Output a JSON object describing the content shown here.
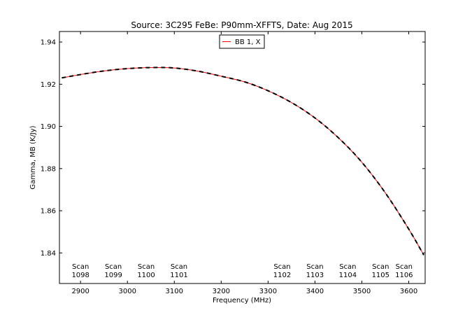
{
  "chart_data": {
    "type": "line",
    "title": "Source: 3C295 FeBe: P90mm-XFFTS, Date: Aug 2015",
    "xlabel": "Frequency (MHz)",
    "ylabel": "Gamma, MB (K/Jy)",
    "xlim": [
      2855,
      3635
    ],
    "ylim": [
      1.8255,
      1.945
    ],
    "xticks": [
      2900,
      3000,
      3100,
      3200,
      3300,
      3400,
      3500,
      3600
    ],
    "yticks": [
      1.84,
      1.86,
      1.88,
      1.9,
      1.92,
      1.94
    ],
    "xtick_labels": [
      "2900",
      "3000",
      "3100",
      "3200",
      "3300",
      "3400",
      "3500",
      "3600"
    ],
    "ytick_labels": [
      "1.84",
      "1.86",
      "1.88",
      "1.90",
      "1.92",
      "1.94"
    ],
    "legend": {
      "location": "top-center",
      "entries": [
        {
          "label": "BB 1, X",
          "color": "#ff0000",
          "style": "solid"
        }
      ]
    },
    "series": [
      {
        "name": "BB 1, X",
        "color": "#ff0000",
        "style": "solid",
        "x": [
          2860,
          2900,
          2950,
          3000,
          3050,
          3100,
          3150,
          3200,
          3250,
          3300,
          3350,
          3400,
          3450,
          3500,
          3550,
          3600,
          3632
        ],
        "y": [
          1.923,
          1.9246,
          1.9263,
          1.9274,
          1.9279,
          1.9277,
          1.9262,
          1.9238,
          1.9211,
          1.9169,
          1.9113,
          1.904,
          1.8946,
          1.883,
          1.8685,
          1.8513,
          1.839
        ]
      },
      {
        "name": "",
        "color": "#000000",
        "style": "dashed",
        "x": [
          2860,
          2900,
          2950,
          3000,
          3050,
          3100,
          3150,
          3200,
          3250,
          3300,
          3350,
          3400,
          3450,
          3500,
          3550,
          3600,
          3632
        ],
        "y": [
          1.923,
          1.9246,
          1.9263,
          1.9274,
          1.9279,
          1.9277,
          1.9262,
          1.9238,
          1.9211,
          1.9169,
          1.9113,
          1.904,
          1.8946,
          1.883,
          1.8685,
          1.8513,
          1.839
        ]
      }
    ],
    "annotations": [
      {
        "line1": "Scan",
        "line2": "1098",
        "x": 2900
      },
      {
        "line1": "Scan",
        "line2": "1099",
        "x": 2970
      },
      {
        "line1": "Scan",
        "line2": "1100",
        "x": 3040
      },
      {
        "line1": "Scan",
        "line2": "1101",
        "x": 3110
      },
      {
        "line1": "Scan",
        "line2": "1102",
        "x": 3330
      },
      {
        "line1": "Scan",
        "line2": "1103",
        "x": 3400
      },
      {
        "line1": "Scan",
        "line2": "1104",
        "x": 3470
      },
      {
        "line1": "Scan",
        "line2": "1105",
        "x": 3540
      },
      {
        "line1": "Scan",
        "line2": "1106",
        "x": 3590
      }
    ],
    "grid": false
  }
}
